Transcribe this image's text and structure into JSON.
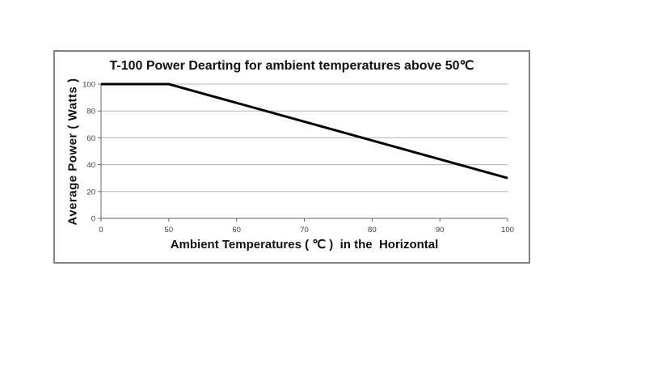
{
  "page": {
    "background": "#ffffff"
  },
  "chart_data": {
    "type": "line",
    "title": "T-100 Power Dearting for ambient temperatures above 50℃",
    "xlabel": "Ambient Temperatures ( ℃ )  in the  Horizontal",
    "ylabel": "Average Power ( Watts )",
    "categories": [
      "0",
      "50",
      "60",
      "70",
      "80",
      "90",
      "100"
    ],
    "series": [
      {
        "values": [
          100,
          100,
          86,
          72,
          58,
          44,
          30
        ]
      }
    ],
    "ylim": [
      0,
      100
    ],
    "yticks": [
      0,
      20,
      40,
      60,
      80,
      100
    ],
    "grid": true,
    "legend": false,
    "notes": "x-axis is categorical with equal spacing between ticks 0,50,60,70,80,90,100; line is flat at 100 W up to 50 C then declines linearly to 30 W at 100 C",
    "colors": {
      "line": "#000000",
      "gridline": "#b3b3b3",
      "axis": "#666666",
      "tick_label": "#404040",
      "panel_border": "#808080"
    }
  }
}
